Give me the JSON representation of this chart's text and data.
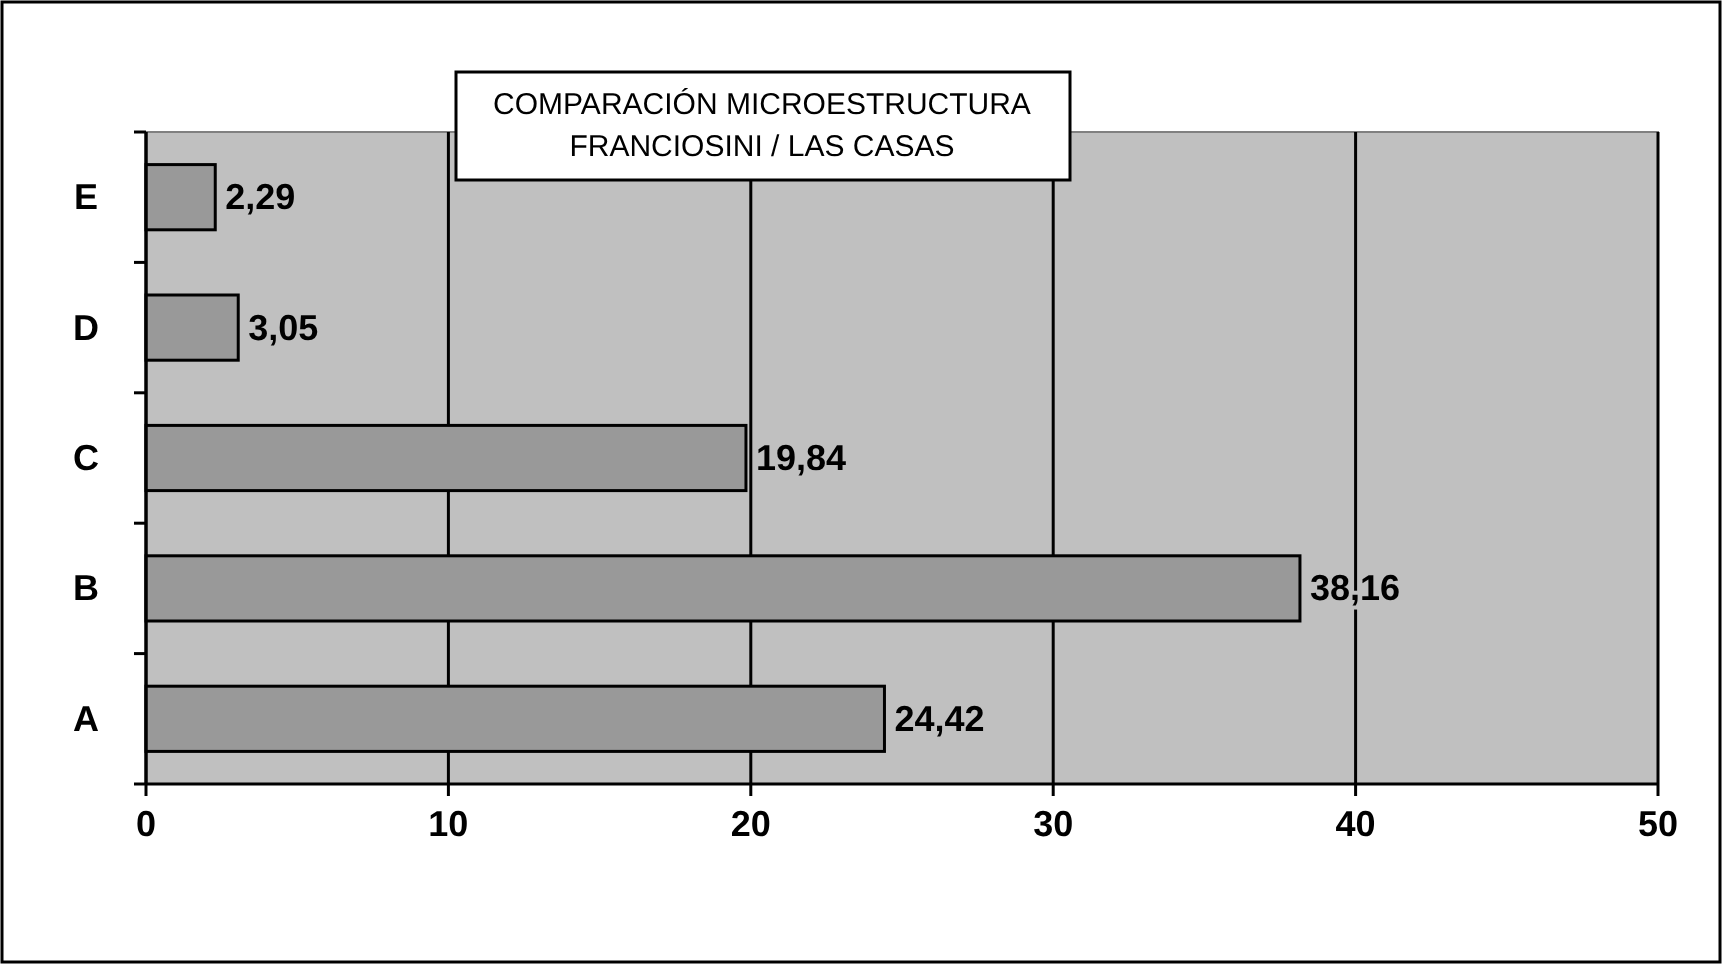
{
  "chart_data": {
    "type": "bar",
    "orientation": "horizontal",
    "title": "COMPARACIÓN MICROESTRUCTURA\nFRANCIOSINI / LAS CASAS",
    "categories": [
      "E",
      "D",
      "C",
      "B",
      "A"
    ],
    "values": [
      2.29,
      3.05,
      19.84,
      38.16,
      24.42
    ],
    "value_labels": [
      "2,29",
      "3,05",
      "19,84",
      "38,16",
      "24,42"
    ],
    "color": "#999999",
    "xlim": [
      0,
      50
    ],
    "xticks": [
      0,
      10,
      20,
      30,
      40,
      50
    ],
    "grid": "x"
  }
}
